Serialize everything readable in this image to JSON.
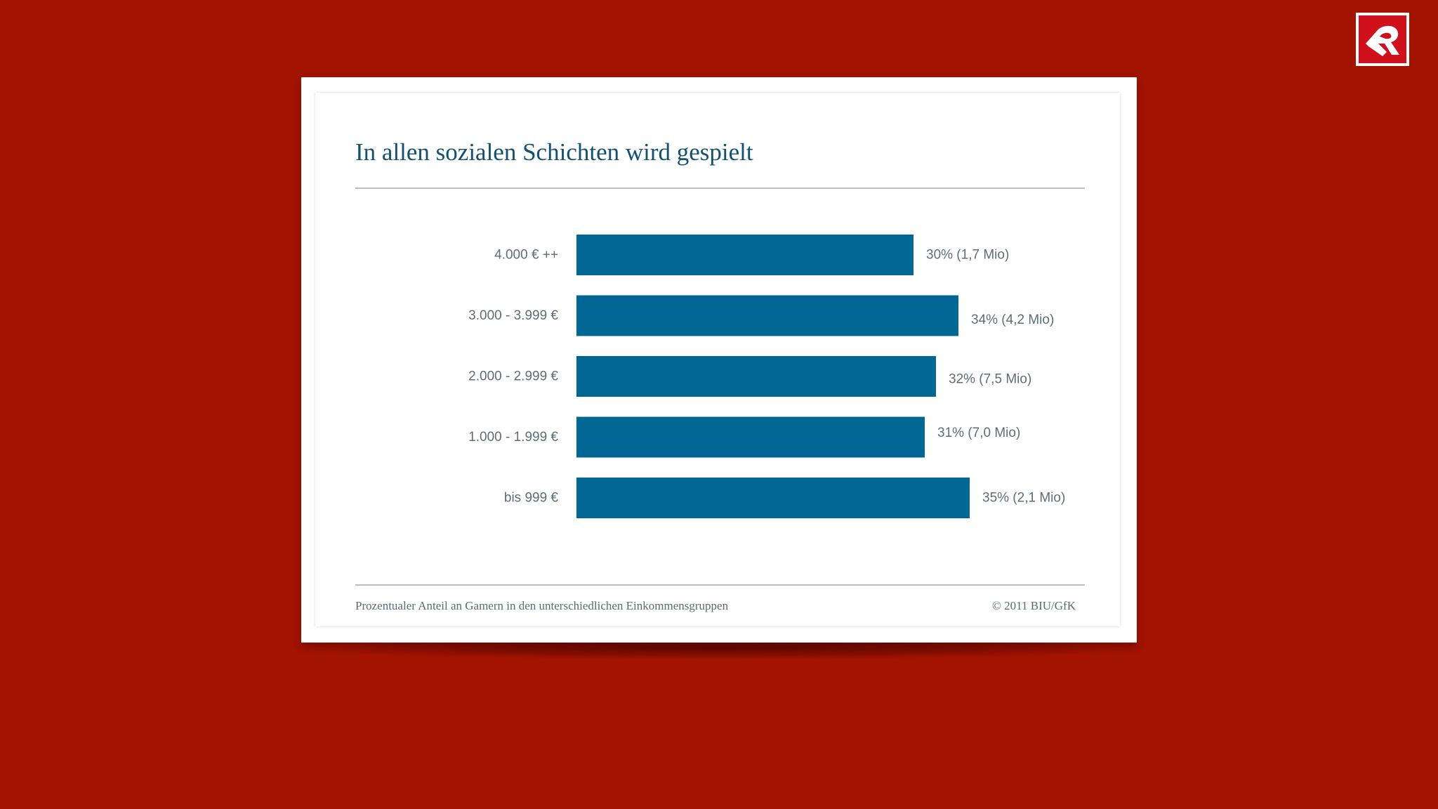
{
  "colors": {
    "background": "#a21300",
    "card": "#ffffff",
    "bar": "#006694",
    "title": "#14506f",
    "label_text": "#5d6d78"
  },
  "logo": {
    "icon": "r-brand-logo-icon"
  },
  "chart_data": {
    "type": "bar",
    "orientation": "horizontal",
    "title": "In allen sozialen Schichten wird gespielt",
    "categories": [
      "4.000 € ++",
      "3.000 - 3.999 €",
      "2.000 - 2.999 €",
      "1.000 - 1.999 €",
      "bis 999 €"
    ],
    "values": [
      30,
      34,
      32,
      31,
      35
    ],
    "value_labels": [
      "30% (1,7 Mio)",
      "34% (4,2 Mio)",
      "32% (7,5 Mio)",
      "31% (7,0 Mio)",
      "35% (2,1 Mio)"
    ],
    "unit": "%",
    "xlim": [
      0,
      35
    ],
    "grid": false,
    "legend": "none"
  },
  "footer": {
    "caption": "Prozentualer Anteil an Gamern in den unterschiedlichen Einkommensgruppen",
    "source": "© 2011 BIU/GfK"
  }
}
